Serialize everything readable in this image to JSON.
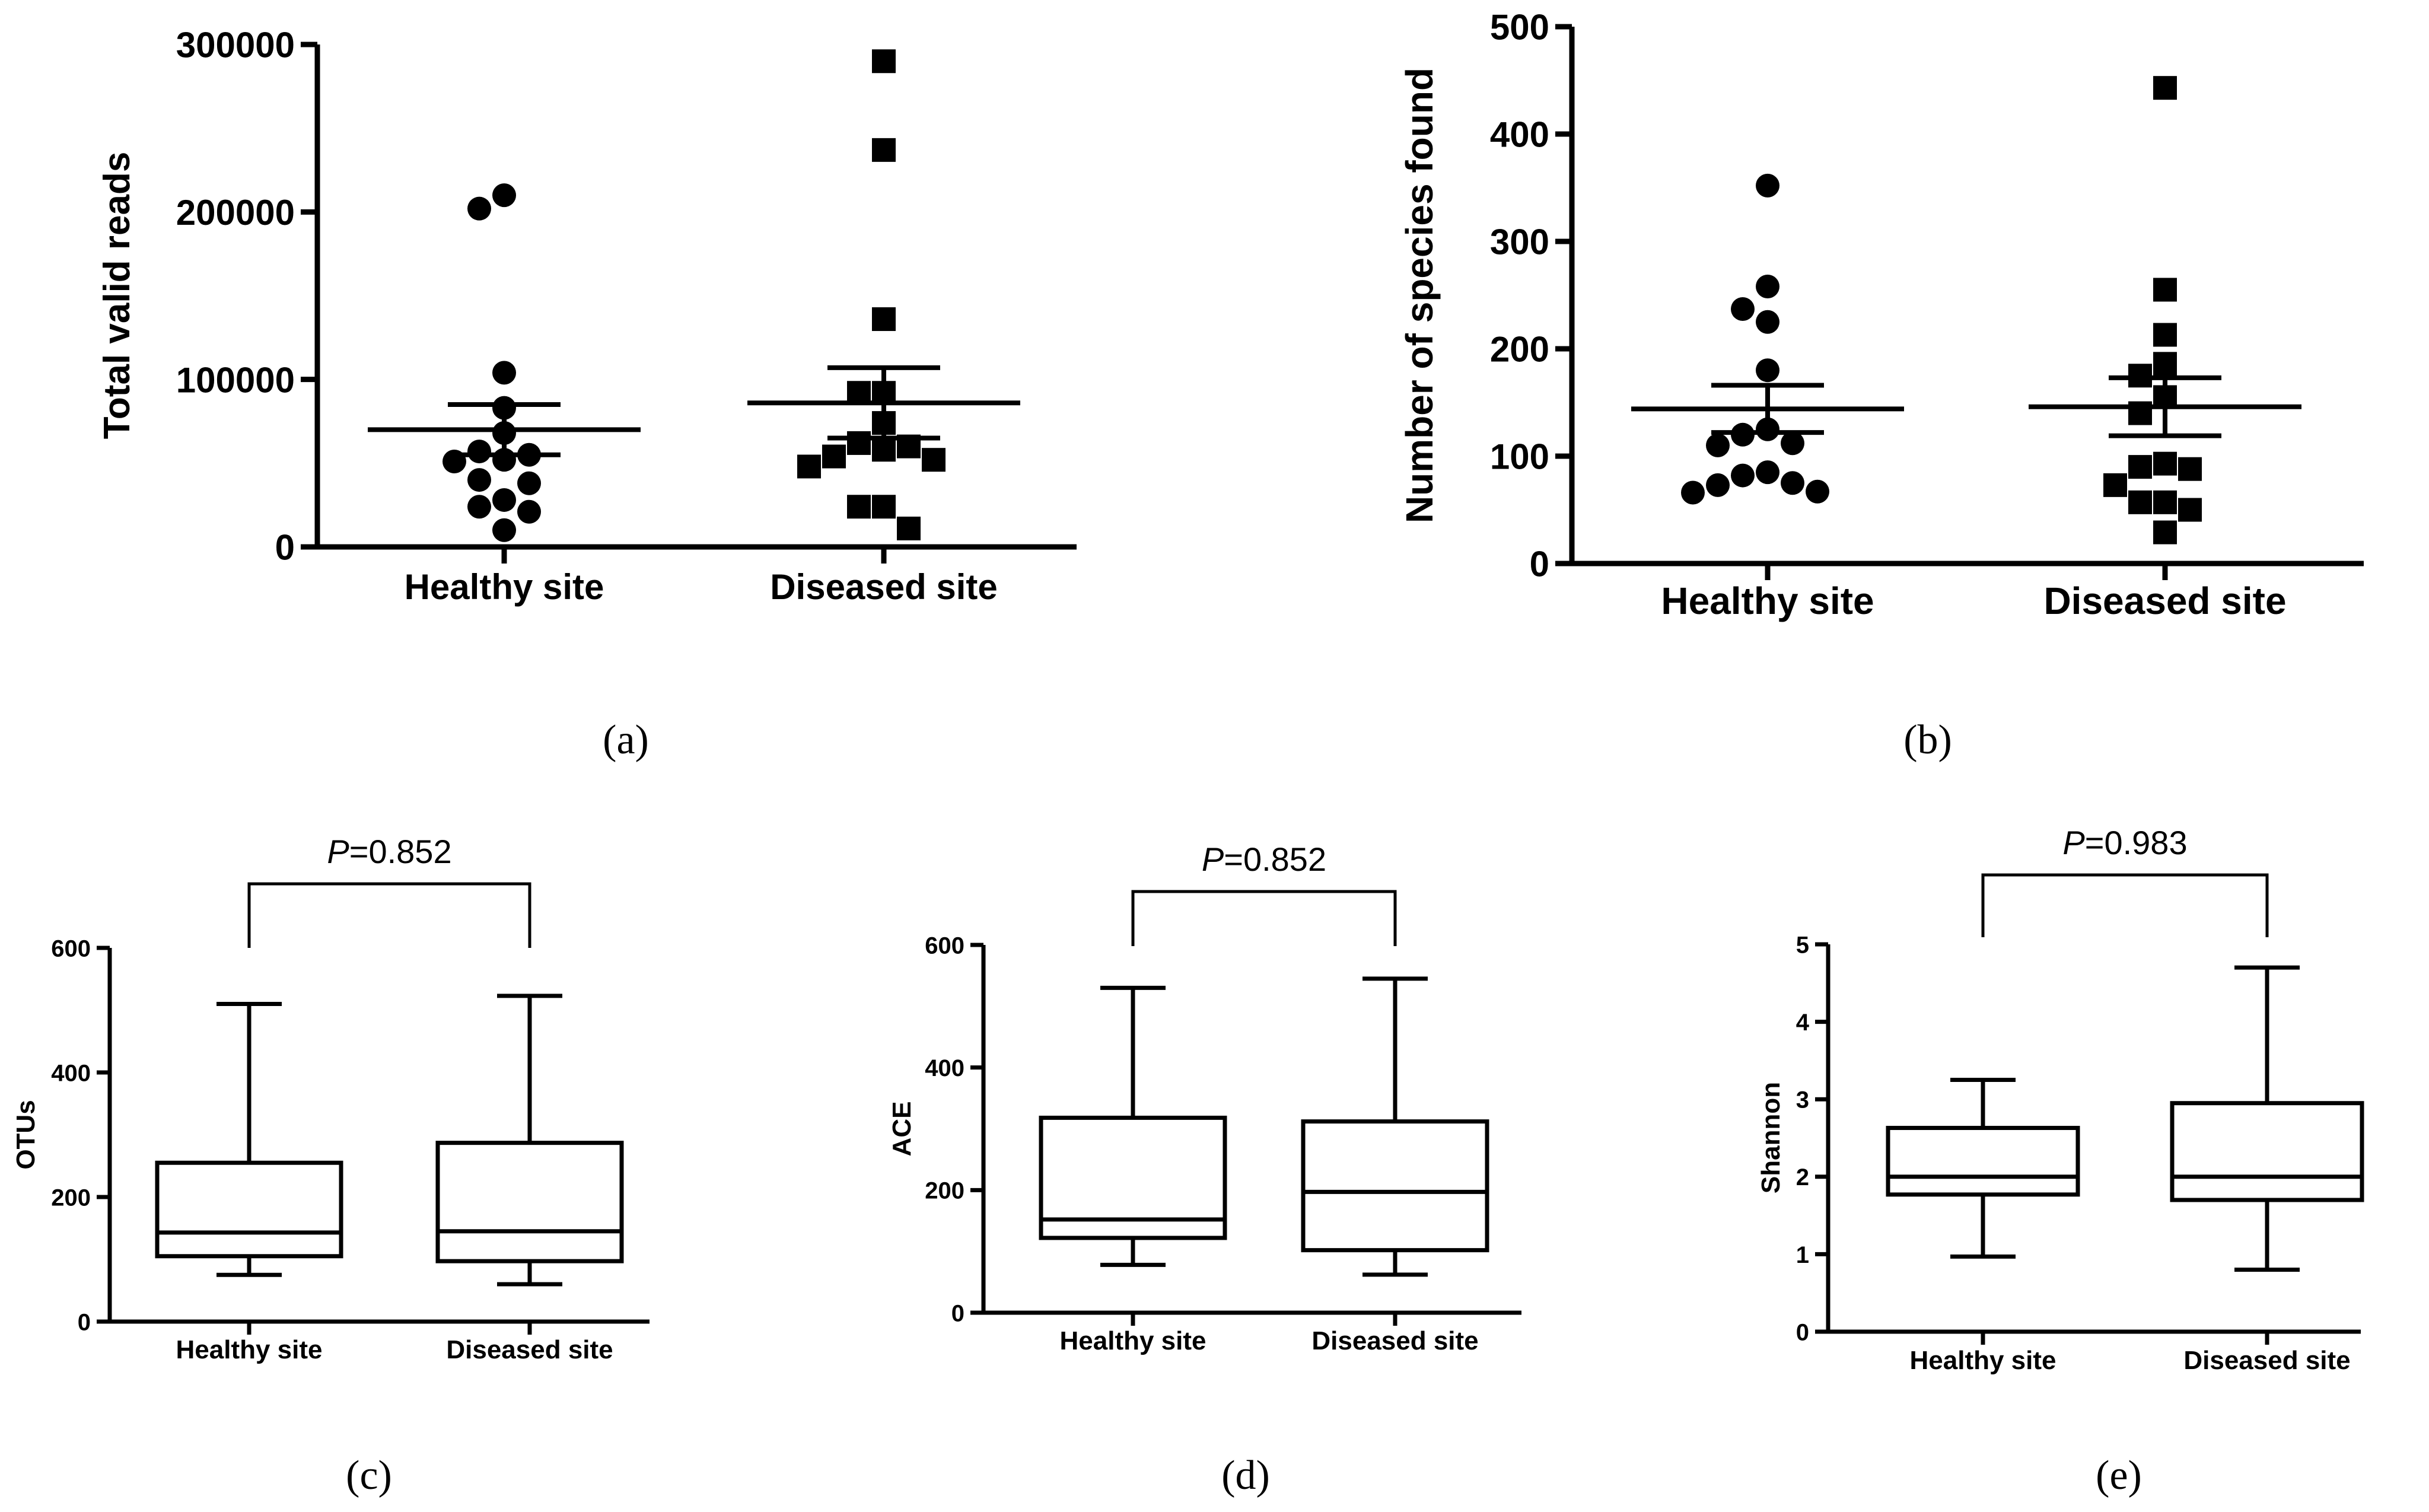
{
  "chart_data": [
    {
      "panel": "(a)",
      "type": "scatter",
      "caption": "(a)",
      "ylabel": "Total valid reads",
      "xlabel": "",
      "ylim": [
        0,
        300000
      ],
      "yticks": [
        0,
        100000,
        200000,
        300000
      ],
      "ytick_labels": [
        "0",
        "100000",
        "200000",
        "300000"
      ],
      "categories": [
        "Healthy site",
        "Diseased site"
      ],
      "series": [
        {
          "category": "Healthy site",
          "marker": "circle",
          "values": [
            210000,
            202000,
            104000,
            83000,
            68000,
            57000,
            55000,
            52000,
            51000,
            40000,
            38000,
            28000,
            24000,
            21000,
            10000
          ],
          "mean": 70000,
          "sem": 15000
        },
        {
          "category": "Diseased site",
          "marker": "square",
          "values": [
            290000,
            237000,
            136000,
            92000,
            92000,
            74000,
            62000,
            60000,
            58000,
            54000,
            52000,
            48000,
            24000,
            24000,
            11000
          ],
          "mean": 86000,
          "sem": 21000
        }
      ]
    },
    {
      "panel": "(b)",
      "type": "scatter",
      "caption": "(b)",
      "ylabel": "Number of species found",
      "xlabel": "",
      "ylim": [
        0,
        500
      ],
      "yticks": [
        0,
        100,
        200,
        300,
        400,
        500
      ],
      "ytick_labels": [
        "0",
        "100",
        "200",
        "300",
        "400",
        "500"
      ],
      "categories": [
        "Healthy site",
        "Diseased site"
      ],
      "series": [
        {
          "category": "Healthy site",
          "marker": "circle",
          "values": [
            352,
            258,
            237,
            225,
            180,
            125,
            120,
            112,
            110,
            85,
            82,
            75,
            73,
            67,
            66
          ],
          "mean": 144,
          "sem": 22
        },
        {
          "category": "Diseased site",
          "marker": "square",
          "values": [
            443,
            255,
            213,
            186,
            175,
            155,
            140,
            93,
            90,
            88,
            73,
            57,
            57,
            50,
            29
          ],
          "mean": 146,
          "sem": 27
        }
      ]
    },
    {
      "panel": "(c)",
      "type": "boxplot",
      "caption": "(c)",
      "ylabel": "OTUs",
      "xlabel": "",
      "ylim": [
        0,
        600
      ],
      "yticks": [
        0,
        200,
        400,
        600
      ],
      "ytick_labels": [
        "0",
        "200",
        "400",
        "600"
      ],
      "categories": [
        "Healthy site",
        "Diseased site"
      ],
      "boxes": [
        {
          "category": "Healthy site",
          "min": 75,
          "q1": 105,
          "median": 143,
          "q3": 255,
          "max": 510
        },
        {
          "category": "Diseased site",
          "min": 60,
          "q1": 97,
          "median": 145,
          "q3": 287,
          "max": 523
        }
      ],
      "p_value": {
        "italic": "P",
        "text": "=0.852"
      }
    },
    {
      "panel": "(d)",
      "type": "boxplot",
      "caption": "(d)",
      "ylabel": "ACE",
      "xlabel": "",
      "ylim": [
        0,
        600
      ],
      "yticks": [
        0,
        200,
        400,
        600
      ],
      "ytick_labels": [
        "0",
        "200",
        "400",
        "600"
      ],
      "categories": [
        "Healthy site",
        "Diseased site"
      ],
      "boxes": [
        {
          "category": "Healthy site",
          "min": 78,
          "q1": 122,
          "median": 152,
          "q3": 318,
          "max": 530
        },
        {
          "category": "Diseased site",
          "min": 62,
          "q1": 102,
          "median": 197,
          "q3": 312,
          "max": 545
        }
      ],
      "p_value": {
        "italic": "P",
        "text": "=0.852"
      }
    },
    {
      "panel": "(e)",
      "type": "boxplot",
      "caption": "(e)",
      "ylabel": "Shannon",
      "xlabel": "",
      "ylim": [
        0,
        5
      ],
      "yticks": [
        0,
        1,
        2,
        3,
        4,
        5
      ],
      "ytick_labels": [
        "0",
        "1",
        "2",
        "3",
        "4",
        "5"
      ],
      "categories": [
        "Healthy site",
        "Diseased site"
      ],
      "boxes": [
        {
          "category": "Healthy site",
          "min": 0.97,
          "q1": 1.77,
          "median": 2.0,
          "q3": 2.63,
          "max": 3.25
        },
        {
          "category": "Diseased site",
          "min": 0.8,
          "q1": 1.7,
          "median": 2.0,
          "q3": 2.95,
          "max": 4.7
        }
      ],
      "p_value": {
        "italic": "P",
        "text": "=0.983"
      }
    }
  ]
}
